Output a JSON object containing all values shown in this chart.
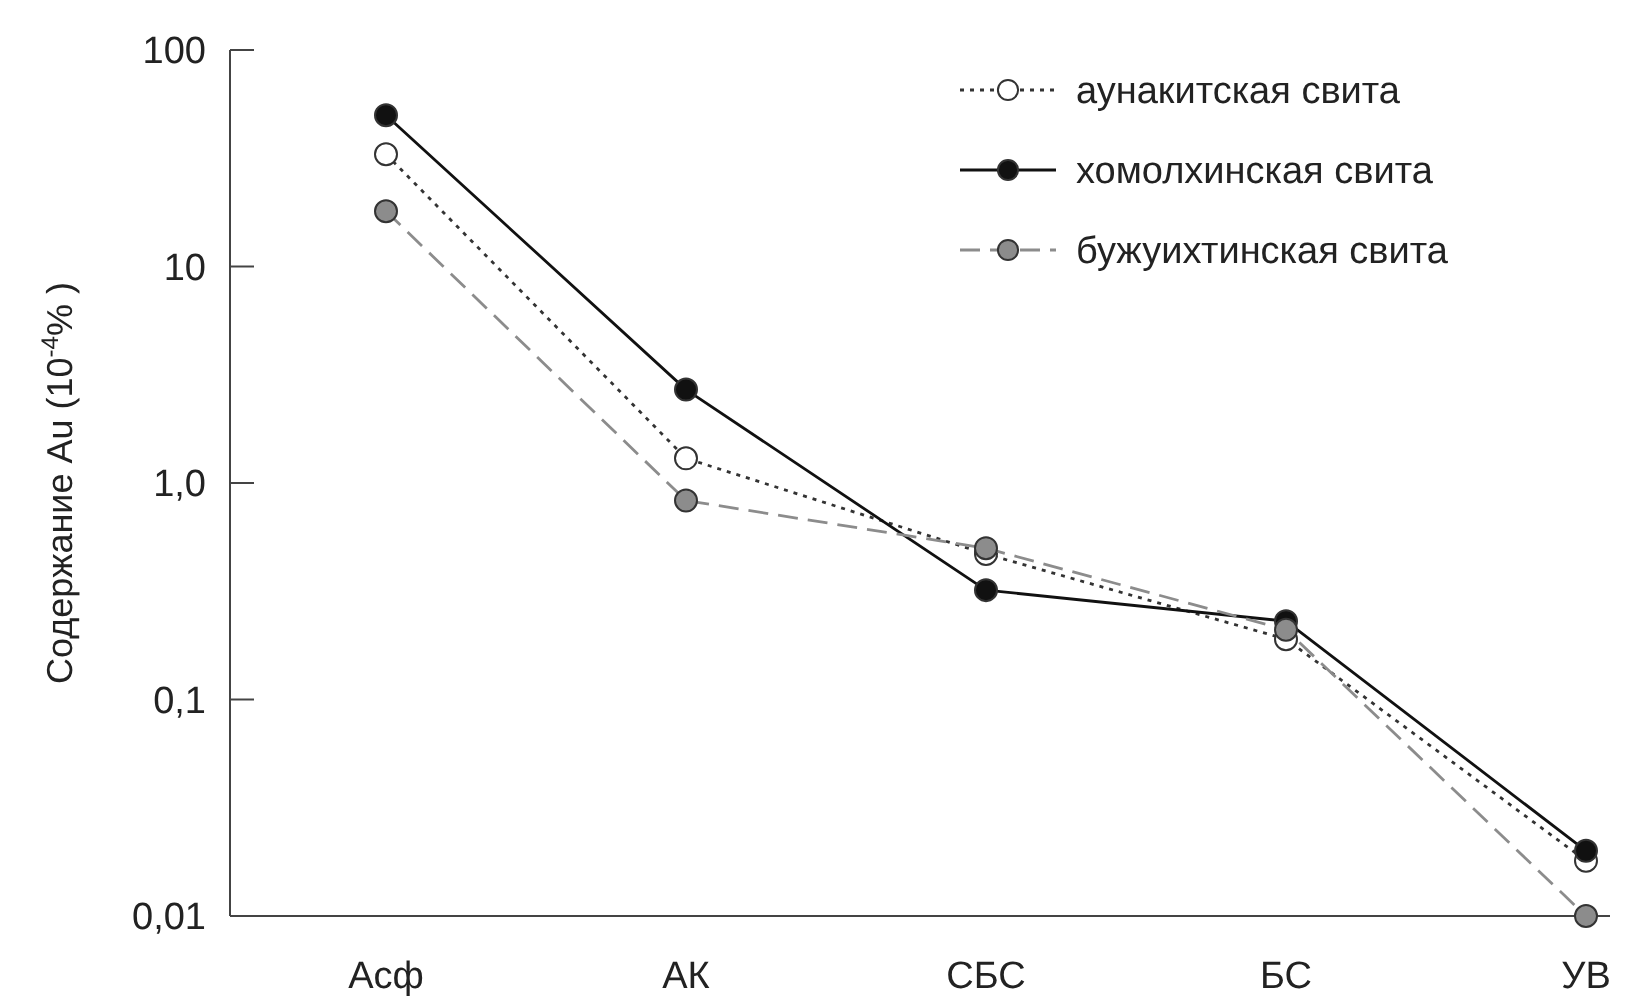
{
  "chart_data": {
    "type": "line",
    "ylabel": "Содержание Au (10$^{-4}$% )",
    "categories": [
      "Асф",
      "АК",
      "СБС",
      "БС",
      "УВ"
    ],
    "log": true,
    "ylim": [
      0.01,
      100
    ],
    "yticks": [
      {
        "value": 0.01,
        "label": "0,01"
      },
      {
        "value": 0.1,
        "label": "0,1"
      },
      {
        "value": 1,
        "label": "1,0"
      },
      {
        "value": 10,
        "label": "10"
      },
      {
        "value": 100,
        "label": "100"
      }
    ],
    "legend": "top right",
    "marker": "circle",
    "series": [
      {
        "name": "аунакитская свита",
        "color": "#ffffff",
        "line_style": "dotted",
        "values": [
          33,
          1.3,
          0.47,
          0.19,
          0.018
        ]
      },
      {
        "name": "хомолхинская свита",
        "color": "#111111",
        "line_style": "solid",
        "values": [
          50,
          2.7,
          0.32,
          0.23,
          0.02
        ]
      },
      {
        "name": "бужуихтинская свита",
        "color": "#8c8c8c",
        "line_style": "dashed",
        "values": [
          18,
          0.83,
          0.5,
          0.21,
          0.01
        ]
      }
    ]
  }
}
